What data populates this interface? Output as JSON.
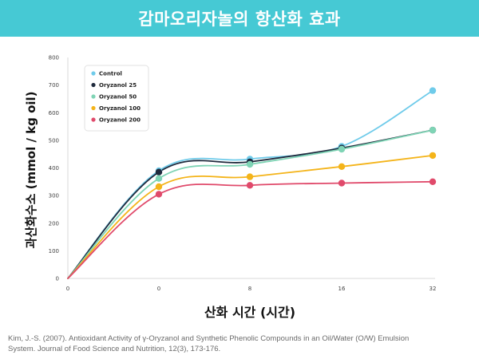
{
  "header": {
    "title": "감마오리자놀의 항산화 효과"
  },
  "colors": {
    "header_bg": "#46c9d4"
  },
  "chart_data": {
    "type": "line",
    "title": "",
    "xlabel": "산화 시간 (시간)",
    "ylabel": "과산화수소 (mmol / kg oil)",
    "categories": [
      "0",
      "0",
      "8",
      "16",
      "32"
    ],
    "ylim": [
      0,
      800
    ],
    "yticks": [
      0,
      100,
      200,
      300,
      400,
      500,
      600,
      700,
      800
    ],
    "grid": false,
    "legend_position": "top-left",
    "series": [
      {
        "name": "Control",
        "color": "#6fcbea",
        "values": [
          0,
          390,
          432,
          478,
          680
        ]
      },
      {
        "name": "Oryzanol 25",
        "color": "#1f2a3d",
        "values": [
          0,
          385,
          422,
          472,
          537
        ]
      },
      {
        "name": "Oryzanol 50",
        "color": "#7fd4b5",
        "values": [
          0,
          362,
          413,
          468,
          537
        ]
      },
      {
        "name": "Oryzanol 100",
        "color": "#f4b41a",
        "values": [
          0,
          332,
          368,
          405,
          445
        ]
      },
      {
        "name": "Oryzanol 200",
        "color": "#e04a6b",
        "values": [
          0,
          305,
          337,
          345,
          350
        ]
      }
    ]
  },
  "citation": {
    "line1": "Kim, J.-S. (2007). Antioxidant Activity of γ-Oryzanol and Synthetic Phenolic Compounds in an Oil/Water (O/W) Emulsion",
    "line2": "System. Journal of Food Science and Nutrition, 12(3), 173-176."
  }
}
